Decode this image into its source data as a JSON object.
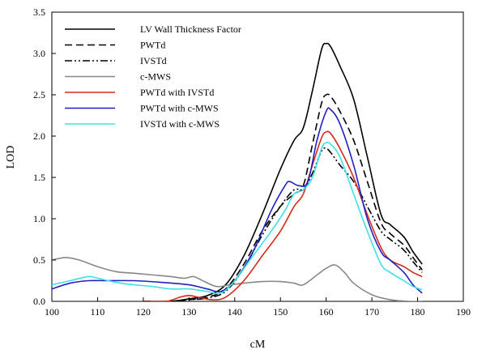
{
  "chart_data": {
    "type": "line",
    "title": "",
    "xlabel": "cM",
    "ylabel": "LOD",
    "xlim": [
      100,
      190
    ],
    "ylim": [
      0,
      3.5
    ],
    "xticks": [
      100,
      110,
      120,
      130,
      140,
      150,
      160,
      170,
      180,
      190
    ],
    "yticks": [
      0.0,
      0.5,
      1.0,
      1.5,
      2.0,
      2.5,
      3.0,
      3.5
    ],
    "ytick_labels": [
      "0.0",
      "0.5",
      "1.0",
      "1.5",
      "2.0",
      "2.5",
      "3.0",
      "3.5"
    ],
    "grid": false,
    "legend": "top-left",
    "series": [
      {
        "name": "LV Wall Thickness Factor",
        "color": "#000000",
        "dash": "solid",
        "x": [
          120,
          126,
          130,
          134,
          138,
          142,
          146,
          150,
          153,
          155,
          157,
          159,
          160,
          161,
          163,
          166,
          169,
          172,
          174,
          177,
          179,
          181
        ],
        "y": [
          0.0,
          0.0,
          0.03,
          0.07,
          0.2,
          0.55,
          1.05,
          1.6,
          1.95,
          2.1,
          2.55,
          3.05,
          3.12,
          3.08,
          2.85,
          2.45,
          1.75,
          1.05,
          0.93,
          0.78,
          0.6,
          0.45
        ]
      },
      {
        "name": "PWTd",
        "color": "#000000",
        "dash": "dash",
        "x": [
          120,
          126,
          130,
          134,
          138,
          142,
          146,
          150,
          153,
          155,
          157,
          159,
          160,
          161,
          163,
          166,
          169,
          172,
          174,
          177,
          179,
          181
        ],
        "y": [
          0.0,
          0.0,
          0.02,
          0.05,
          0.15,
          0.45,
          0.85,
          1.15,
          1.3,
          1.4,
          1.9,
          2.4,
          2.5,
          2.48,
          2.3,
          1.95,
          1.45,
          0.95,
          0.82,
          0.68,
          0.53,
          0.38
        ]
      },
      {
        "name": "IVSTd",
        "color": "#000000",
        "dash": "dashdot",
        "x": [
          120,
          126,
          130,
          134,
          138,
          142,
          146,
          150,
          153,
          155,
          157,
          159,
          160,
          161,
          163,
          166,
          169,
          172,
          174,
          177,
          179,
          181
        ],
        "y": [
          0.0,
          0.0,
          0.02,
          0.04,
          0.12,
          0.4,
          0.8,
          1.15,
          1.35,
          1.35,
          1.55,
          1.82,
          1.85,
          1.8,
          1.65,
          1.45,
          1.15,
          0.85,
          0.75,
          0.62,
          0.48,
          0.35
        ]
      },
      {
        "name": "c-MWS",
        "color": "#888888",
        "dash": "solid",
        "x": [
          100,
          103,
          106,
          110,
          114,
          118,
          122,
          126,
          129,
          131,
          133,
          136,
          139,
          142,
          146,
          150,
          153,
          155,
          158,
          160,
          162,
          164,
          166,
          170,
          174,
          178,
          181
        ],
        "y": [
          0.5,
          0.53,
          0.5,
          0.42,
          0.36,
          0.34,
          0.32,
          0.3,
          0.28,
          0.3,
          0.25,
          0.18,
          0.2,
          0.22,
          0.24,
          0.24,
          0.22,
          0.2,
          0.32,
          0.4,
          0.44,
          0.35,
          0.22,
          0.08,
          0.02,
          0.0,
          0.0
        ]
      },
      {
        "name": "PWTd with IVSTd",
        "color": "#d42a1a",
        "dash": "solid",
        "x": [
          120,
          125,
          128,
          130,
          132,
          135,
          138,
          142,
          146,
          150,
          153,
          155,
          157,
          159,
          160,
          161,
          163,
          166,
          169,
          172,
          174,
          177,
          179,
          181
        ],
        "y": [
          0.0,
          0.0,
          0.05,
          0.07,
          0.05,
          0.02,
          0.05,
          0.25,
          0.55,
          0.85,
          1.15,
          1.3,
          1.65,
          1.98,
          2.05,
          2.03,
          1.85,
          1.5,
          1.05,
          0.65,
          0.5,
          0.42,
          0.35,
          0.3
        ]
      },
      {
        "name": "PWTd with c-MWS",
        "color": "#2020c0",
        "dash": "solid",
        "x": [
          100,
          104,
          108,
          112,
          118,
          124,
          130,
          134,
          137,
          140,
          144,
          148,
          151,
          152,
          154,
          156,
          158,
          160,
          161,
          163,
          166,
          169,
          172,
          174,
          177,
          179,
          181
        ],
        "y": [
          0.15,
          0.22,
          0.25,
          0.25,
          0.25,
          0.23,
          0.2,
          0.15,
          0.12,
          0.25,
          0.6,
          1.1,
          1.4,
          1.45,
          1.4,
          1.45,
          1.95,
          2.3,
          2.32,
          2.15,
          1.65,
          1.0,
          0.6,
          0.5,
          0.35,
          0.2,
          0.1
        ]
      },
      {
        "name": "IVSTd with c-MWS",
        "color": "#40e0e8",
        "dash": "solid",
        "x": [
          100,
          104,
          108,
          110,
          114,
          118,
          122,
          126,
          130,
          134,
          137,
          140,
          144,
          148,
          151,
          153,
          155,
          157,
          159,
          160,
          161,
          163,
          166,
          169,
          172,
          174,
          177,
          179,
          181
        ],
        "y": [
          0.2,
          0.25,
          0.3,
          0.28,
          0.23,
          0.2,
          0.18,
          0.15,
          0.15,
          0.12,
          0.1,
          0.25,
          0.55,
          0.85,
          1.1,
          1.3,
          1.35,
          1.5,
          1.85,
          1.92,
          1.9,
          1.75,
          1.3,
          0.85,
          0.45,
          0.35,
          0.25,
          0.18,
          0.14
        ]
      }
    ]
  }
}
